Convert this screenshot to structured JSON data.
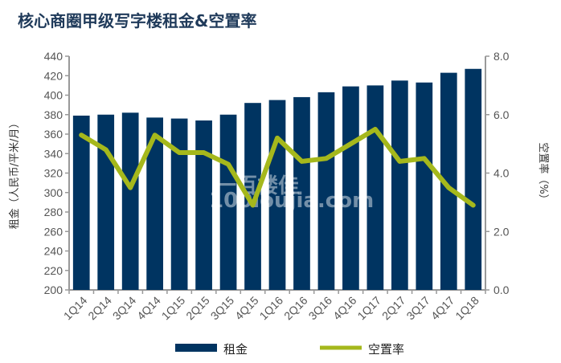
{
  "chart_data": {
    "type": "bar+line",
    "title": "核心商圈甲级写字楼租金&空置率",
    "categories": [
      "1Q14",
      "2Q14",
      "3Q14",
      "4Q14",
      "1Q15",
      "2Q15",
      "3Q15",
      "4Q15",
      "1Q16",
      "2Q16",
      "3Q16",
      "4Q16",
      "1Q17",
      "2Q17",
      "3Q17",
      "4Q17",
      "1Q18"
    ],
    "series": [
      {
        "name": "租金",
        "type": "bar",
        "axis": "left",
        "color": "#003461",
        "values": [
          379,
          380,
          382,
          377,
          376,
          374,
          380,
          392,
          395,
          398,
          403,
          409,
          410,
          415,
          413,
          423,
          427
        ]
      },
      {
        "name": "空置率",
        "type": "line",
        "axis": "right",
        "color": "#a5b81c",
        "values": [
          5.3,
          4.8,
          3.5,
          5.3,
          4.7,
          4.7,
          4.3,
          2.9,
          5.2,
          4.4,
          4.5,
          5.0,
          5.5,
          4.4,
          4.5,
          3.5,
          2.9
        ]
      }
    ],
    "ylabel_left": "租金（人民币/平米/月）",
    "ylabel_right": "空置率（%）",
    "ylim_left": [
      200,
      440
    ],
    "yticks_left": [
      "200",
      "220",
      "240",
      "260",
      "280",
      "300",
      "320",
      "340",
      "360",
      "380",
      "400",
      "420",
      "440"
    ],
    "ylim_right": [
      0,
      8
    ],
    "yticks_right": [
      "0.0",
      "2.0",
      "4.0",
      "6.0",
      "8.0"
    ],
    "grid": false,
    "legend": "bottom",
    "watermark": "一百楼佳 100loujia.com"
  }
}
